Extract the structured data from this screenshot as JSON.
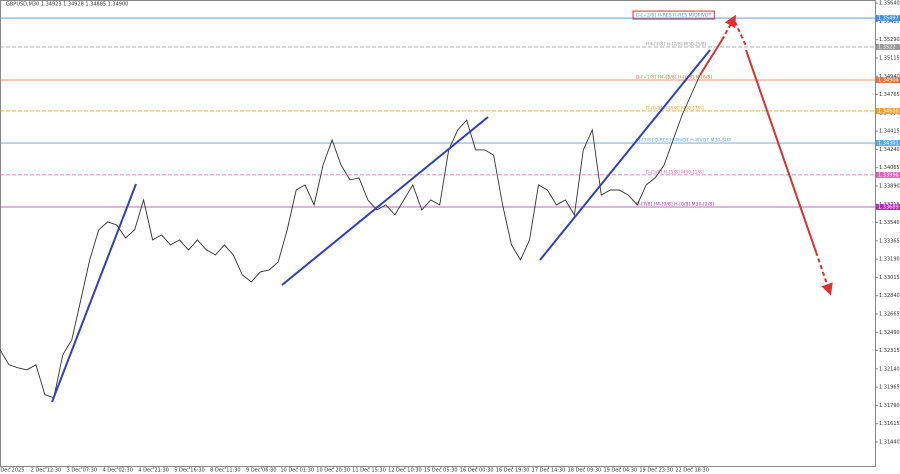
{
  "chart_data": {
    "type": "line",
    "title": "GBPUSD,M30  1.34923 1.34928 1.34885 1.34900",
    "x_labels": [
      "1 Dec 2025",
      "2 Dec 12:30",
      "3 Dec 07:30",
      "4 Dec 02:30",
      "4 Dec 21:30",
      "5 Dec 16:30",
      "8 Dec 11:30",
      "9 Dec 06:30",
      "10 Dec 01:30",
      "10 Dec 20:30",
      "11 Dec 15:30",
      "12 Dec 10:30",
      "15 Dec 05:30",
      "16 Dec 00:30",
      "16 Dec 19:30",
      "17 Dec 14:30",
      "18 Dec 09:30",
      "19 Dec 04:30",
      "19 Dec 23:30",
      "22 Dec 18:30"
    ],
    "series": [
      {
        "color": "#333333",
        "values": [
          1.32322,
          1.32179,
          1.3215,
          1.32131,
          1.32179,
          1.31892,
          1.31863,
          1.32274,
          1.32418,
          1.328,
          1.33183,
          1.3347,
          1.33546,
          1.33517,
          1.33393,
          1.3347,
          1.33756,
          1.33374,
          1.33422,
          1.33326,
          1.33374,
          1.33278,
          1.33374,
          1.33278,
          1.3323,
          1.33326,
          1.3323,
          1.33039,
          1.32972,
          1.33068,
          1.33087,
          1.33163,
          1.3347,
          1.33852,
          1.339,
          1.33709,
          1.34091,
          1.3433,
          1.34091,
          1.33948,
          1.33967,
          1.33756,
          1.33661,
          1.33709,
          1.33613,
          1.33756,
          1.339,
          1.33661,
          1.33756,
          1.33709,
          1.34235,
          1.34426,
          1.34521,
          1.34235,
          1.34235,
          1.34187,
          1.33709,
          1.33326,
          1.33183,
          1.33374,
          1.339,
          1.33852,
          1.33709,
          1.33756,
          1.33613,
          1.34235,
          1.34426,
          1.33804,
          1.33852,
          1.33852,
          1.33804,
          1.33709,
          1.339,
          1.33967,
          1.34091,
          1.3433,
          1.34569,
          1.34761,
          1.34952
        ]
      }
    ],
    "levels": [
      {
        "label": "D-[+2/8] H-RES H-RES M/DPIVOT",
        "value": 1.35497,
        "color": "#4a90e2",
        "dashed": false,
        "boxed": true
      },
      {
        "label": "H4-[7/8] H-[7/8] M30-[5/8]",
        "value": 1.3522,
        "color": "#999999",
        "dashed": true,
        "boxed": false
      },
      {
        "label": "D-[+1/8] H4-[8/8] H-[8/8] M-[6/8]",
        "value": 1.34904,
        "color": "#e8743b",
        "dashed": false,
        "boxed": false
      },
      {
        "label": "D-[6/8] H-[6/8] M30-[7/8]",
        "value": 1.34608,
        "color": "#f0a030",
        "dashed": true,
        "boxed": false
      },
      {
        "label": "W-[7/8] D-RES H-PIVOT H-PIVOT M30-SUP",
        "value": 1.34301,
        "color": "#5aa9e6",
        "dashed": false,
        "boxed": false
      },
      {
        "label": "D-[5/8] H-[5/8] M30-[1/8]",
        "value": 1.33996,
        "color": "#e060c0",
        "dashed": true,
        "boxed": false
      },
      {
        "label": "D-[7/8] H4-[0/8] H-[0/8] M30-[2/8]",
        "value": 1.33689,
        "color": "#b030b0",
        "dashed": false,
        "boxed": false
      }
    ],
    "ylim": [
      1.3121,
      1.3567
    ],
    "yticks": [
      {
        "value": 1.3564,
        "label": "1.35640"
      },
      1.35465,
      {
        "value": 1.3529,
        "label": "1.35290"
      },
      1.35115,
      {
        "value": 1.3494,
        "label": "1.34940"
      },
      1.34765,
      {
        "value": 1.3459,
        "label": "1.34590"
      },
      1.34415,
      {
        "value": 1.3424,
        "label": "1.34240"
      },
      1.34065,
      {
        "value": 1.3389,
        "label": "1.33890"
      },
      1.33715,
      {
        "value": 1.3354,
        "label": "1.33540"
      },
      1.33365,
      {
        "value": 1.3319,
        "label": "1.33190"
      },
      1.33015,
      {
        "value": 1.3284,
        "label": "1.32840"
      },
      1.32665,
      {
        "value": 1.3249,
        "label": "1.32490"
      },
      1.32315,
      {
        "value": 1.3214,
        "label": "1.32140"
      },
      1.31965,
      {
        "value": 1.3179,
        "label": "1.31790"
      },
      1.31615,
      {
        "value": 1.3144,
        "label": "1.31440"
      }
    ]
  }
}
